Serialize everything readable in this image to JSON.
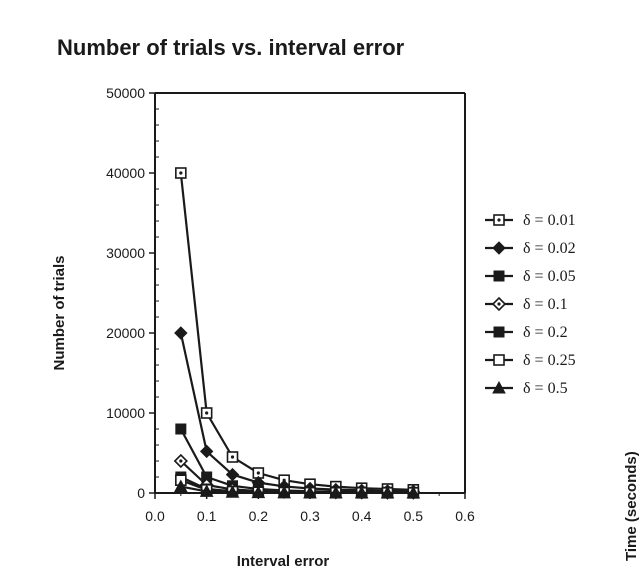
{
  "chart_data": {
    "type": "line",
    "title": "Number of trials vs. interval error",
    "xlabel": "Interval error",
    "ylabel": "Number of trials",
    "xlim": [
      0.0,
      0.6
    ],
    "ylim": [
      0,
      50000
    ],
    "xticks": [
      "0.0",
      "0.1",
      "0.2",
      "0.3",
      "0.4",
      "0.5",
      "0.6"
    ],
    "yticks": [
      "0",
      "10000",
      "20000",
      "30000",
      "40000",
      "50000"
    ],
    "x": [
      0.05,
      0.1,
      0.15,
      0.2,
      0.25,
      0.3,
      0.35,
      0.4,
      0.45,
      0.5
    ],
    "legend_position": "right",
    "grid": false,
    "series": [
      {
        "name": "δ = 0.01",
        "marker": "square-dot",
        "values": [
          40000,
          10000,
          4500,
          2500,
          1600,
          1100,
          800,
          600,
          500,
          400
        ]
      },
      {
        "name": "δ = 0.02",
        "marker": "diamond-filled",
        "values": [
          20000,
          5200,
          2300,
          1300,
          820,
          560,
          420,
          330,
          260,
          210
        ]
      },
      {
        "name": "δ = 0.05",
        "marker": "square-filled",
        "values": [
          8000,
          2000,
          900,
          500,
          320,
          220,
          160,
          120,
          100,
          80
        ]
      },
      {
        "name": "δ = 0.1",
        "marker": "diamond-dot",
        "values": [
          4000,
          1000,
          450,
          250,
          160,
          110,
          80,
          60,
          50,
          40
        ]
      },
      {
        "name": "δ = 0.2",
        "marker": "square-filled",
        "values": [
          2000,
          500,
          220,
          125,
          80,
          55,
          40,
          30,
          25,
          20
        ]
      },
      {
        "name": "δ = 0.25",
        "marker": "square-open",
        "values": [
          1600,
          400,
          180,
          100,
          64,
          44,
          33,
          25,
          20,
          16
        ]
      },
      {
        "name": "δ = 0.5",
        "marker": "triangle-filled",
        "values": [
          800,
          200,
          90,
          50,
          32,
          22,
          16,
          12,
          10,
          8
        ]
      }
    ]
  },
  "cropped_side_label": "Time (seconds)"
}
